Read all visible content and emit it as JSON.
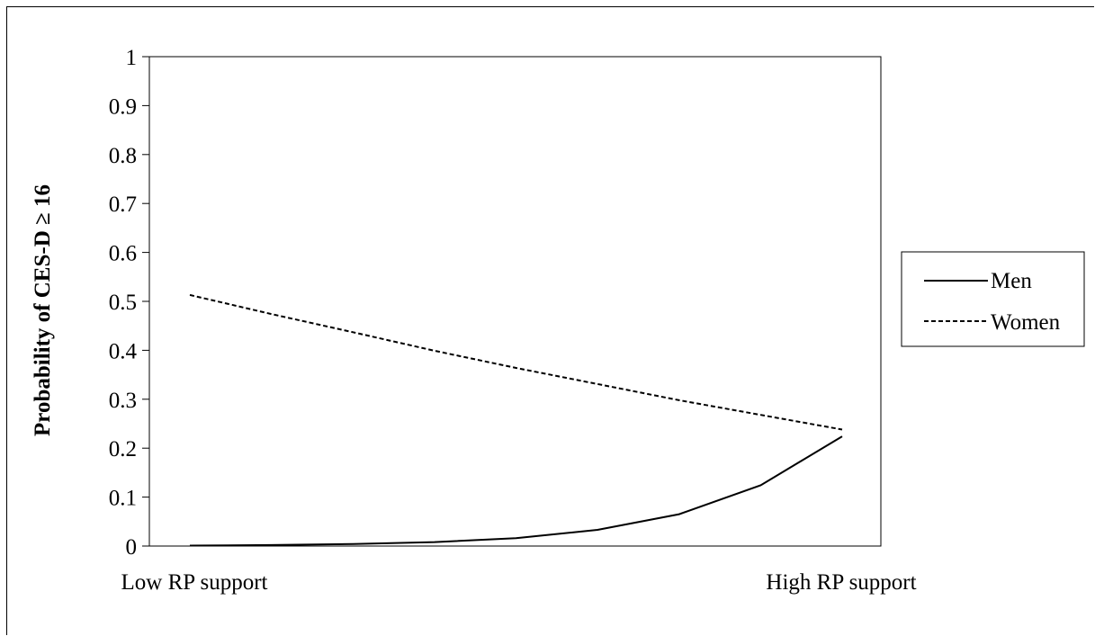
{
  "chart_data": {
    "type": "line",
    "ylabel": "Probability of CES-D ≥ 16",
    "xlabel": "",
    "x_end_labels": [
      "Low RP support",
      "High RP support"
    ],
    "x": [
      1,
      2,
      3,
      4,
      5,
      6,
      7,
      8,
      9
    ],
    "ylim": [
      0,
      1
    ],
    "yticks": [
      "0",
      "0.1",
      "0.2",
      "0.3",
      "0.4",
      "0.5",
      "0.6",
      "0.7",
      "0.8",
      "0.9",
      "1"
    ],
    "grid": false,
    "legend_position": "right",
    "series": [
      {
        "name": "Men",
        "line_style": "solid",
        "color": "#000000",
        "values": [
          0.001,
          0.002,
          0.004,
          0.008,
          0.016,
          0.033,
          0.065,
          0.124,
          0.224
        ]
      },
      {
        "name": "Women",
        "line_style": "dashed",
        "color": "#000000",
        "values": [
          0.513,
          0.474,
          0.437,
          0.399,
          0.364,
          0.331,
          0.298,
          0.268,
          0.238
        ]
      }
    ]
  }
}
